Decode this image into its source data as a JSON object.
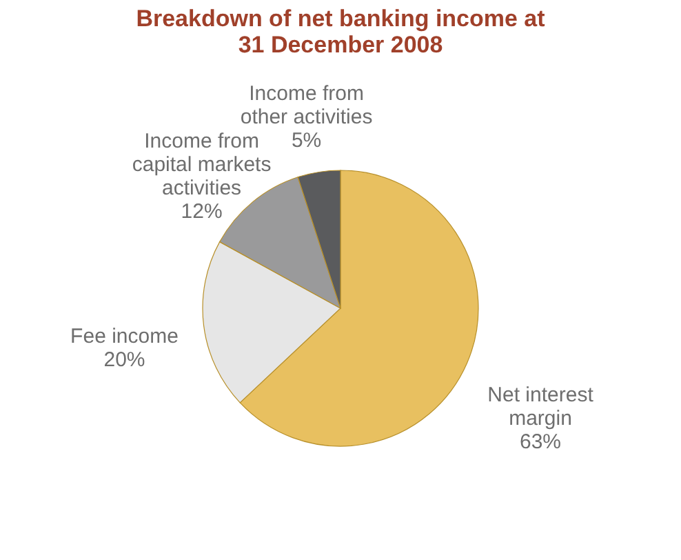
{
  "chart_data": {
    "type": "pie",
    "title": "Breakdown of net banking income at 31 December 2008",
    "categories": [
      "Net interest margin",
      "Fee income",
      "Income from capital markets activities",
      "Income from other activities"
    ],
    "values": [
      63,
      20,
      12,
      5
    ],
    "value_labels": [
      "63%",
      "20%",
      "12%",
      "5%"
    ],
    "colors": [
      "#e8c060",
      "#e6e6e6",
      "#9a9a9b",
      "#5a5b5d"
    ],
    "legend": false
  }
}
